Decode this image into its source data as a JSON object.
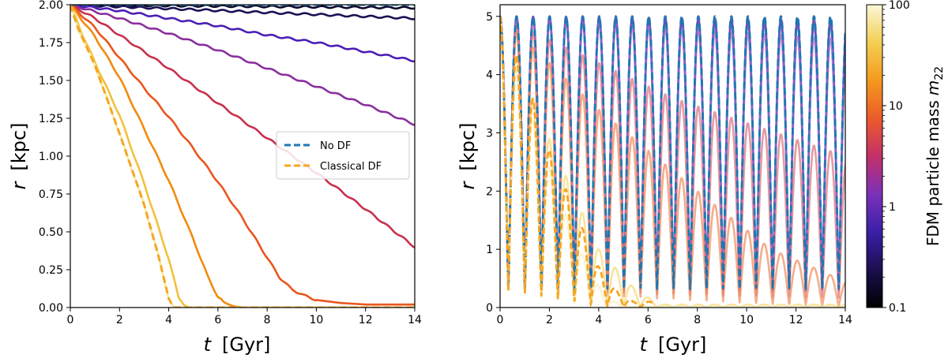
{
  "chart_data": [
    {
      "type": "line",
      "xlabel": "t",
      "xunit": "[Gyr]",
      "ylabel": "r",
      "yunit": "[kpc]",
      "xlim": [
        0,
        14
      ],
      "ylim": [
        0,
        2.0
      ],
      "xticks": [
        "0",
        "2",
        "4",
        "6",
        "8",
        "10",
        "12",
        "14"
      ],
      "yticks": [
        "0.00",
        "0.25",
        "0.50",
        "0.75",
        "1.00",
        "1.25",
        "1.50",
        "1.75",
        "2.00"
      ],
      "legend": {
        "position": "center-right",
        "entries": [
          {
            "label": "No DF",
            "color": "#1f77b4",
            "style": "dashed"
          },
          {
            "label": "Classical DF",
            "color": "#f5a623",
            "style": "dashed"
          }
        ]
      },
      "reference_series": [
        {
          "name": "No DF",
          "color": "#1f77b4",
          "x": [
            0,
            14
          ],
          "y": [
            2.0,
            2.0
          ]
        },
        {
          "name": "Classical DF",
          "color": "#f5a623",
          "x": [
            0,
            0.3,
            1,
            2,
            3,
            3.6,
            4.0,
            4.2,
            14
          ],
          "y": [
            2.0,
            1.85,
            1.6,
            1.15,
            0.68,
            0.33,
            0.06,
            0.0,
            0.0
          ]
        }
      ],
      "series": [
        {
          "m22": 0.1,
          "color": "#0d0829",
          "x": [
            0,
            14
          ],
          "y": [
            2.0,
            1.98
          ]
        },
        {
          "m22": 0.2,
          "color": "#1b1054",
          "x": [
            0,
            14
          ],
          "y": [
            2.0,
            1.91
          ]
        },
        {
          "m22": 0.5,
          "color": "#4a1fb5",
          "x": [
            0,
            2,
            4,
            6,
            8,
            10,
            12,
            14
          ],
          "y": [
            2.0,
            1.96,
            1.91,
            1.86,
            1.8,
            1.75,
            1.69,
            1.63
          ]
        },
        {
          "m22": 1,
          "color": "#8a2f9e",
          "x": [
            0,
            2,
            4,
            6,
            8,
            10,
            12,
            14
          ],
          "y": [
            2.0,
            1.91,
            1.81,
            1.7,
            1.58,
            1.46,
            1.34,
            1.21
          ]
        },
        {
          "m22": 2,
          "color": "#c9304d",
          "x": [
            0,
            1,
            2,
            4,
            6,
            8,
            10,
            12,
            14
          ],
          "y": [
            2.0,
            1.91,
            1.8,
            1.58,
            1.35,
            1.12,
            0.89,
            0.65,
            0.4
          ]
        },
        {
          "m22": 4,
          "color": "#e9561e",
          "x": [
            0,
            1,
            2,
            3,
            4,
            5,
            6,
            7,
            8,
            8.5,
            9,
            9.5,
            10,
            11,
            12,
            14
          ],
          "y": [
            2.0,
            1.85,
            1.65,
            1.45,
            1.26,
            1.05,
            0.83,
            0.59,
            0.33,
            0.2,
            0.12,
            0.08,
            0.05,
            0.03,
            0.02,
            0.02
          ]
        },
        {
          "m22": 7,
          "color": "#f28a0f",
          "x": [
            0,
            1,
            2,
            3,
            4,
            5,
            5.6,
            6.0,
            6.3,
            6.6,
            7,
            8,
            14
          ],
          "y": [
            2.0,
            1.79,
            1.52,
            1.18,
            0.84,
            0.45,
            0.2,
            0.07,
            0.03,
            0.01,
            0.0,
            0.0,
            0.0
          ]
        },
        {
          "m22": 15,
          "color": "#f1c13a",
          "x": [
            0,
            0.5,
            1,
            2,
            3,
            4,
            4.4,
            4.6,
            4.8,
            5.0,
            14
          ],
          "y": [
            2.0,
            1.8,
            1.62,
            1.27,
            0.82,
            0.32,
            0.07,
            0.02,
            0.0,
            0.0,
            0.0
          ]
        },
        {
          "m22": 40,
          "color": "#f6e9a0",
          "x": [
            0,
            0.3,
            1,
            2,
            3,
            3.6,
            4.0,
            4.2,
            14
          ],
          "y": [
            2.0,
            1.85,
            1.6,
            1.15,
            0.68,
            0.33,
            0.06,
            0.0,
            0.0
          ]
        }
      ]
    },
    {
      "type": "line",
      "xlabel": "t",
      "xunit": "[Gyr]",
      "ylabel": "r",
      "yunit": "[kpc]",
      "xlim": [
        0,
        14
      ],
      "ylim": [
        0,
        5.2
      ],
      "xticks": [
        "0",
        "2",
        "4",
        "6",
        "8",
        "10",
        "12",
        "14"
      ],
      "yticks": [
        "0",
        "1",
        "2",
        "3",
        "4",
        "5"
      ],
      "orbit_period_gyr": 0.67,
      "r_max": 5.0,
      "reference_series": [
        {
          "name": "No DF",
          "color": "#1f77b4",
          "r_peak": [
            5.0,
            5.0
          ],
          "r_min": 0.3,
          "t_end": 14
        },
        {
          "name": "Classical DF",
          "color": "#f5a623",
          "t": [
            0,
            0.7,
            1.4,
            2.0,
            2.7,
            3.4,
            4.0,
            4.7,
            5.4
          ],
          "r_peak": [
            5.0,
            4.3,
            3.5,
            2.7,
            2.0,
            1.3,
            0.7,
            0.3,
            0.1
          ]
        }
      ],
      "series": [
        {
          "m22": 0.2,
          "color": "#2a1a7a",
          "t": [
            0,
            14
          ],
          "r_peak": [
            5.0,
            4.95
          ]
        },
        {
          "m22": 0.5,
          "color": "#6a45c8",
          "t": [
            0,
            14
          ],
          "r_peak": [
            5.0,
            4.85
          ]
        },
        {
          "m22": 1,
          "color": "#a06ac8",
          "t": [
            0,
            14
          ],
          "r_peak": [
            5.0,
            4.6
          ]
        },
        {
          "m22": 2,
          "color": "#d8707a",
          "t": [
            0,
            7,
            14
          ],
          "r_peak": [
            5.0,
            3.6,
            2.6
          ]
        },
        {
          "m22": 4,
          "color": "#f08a5a",
          "t": [
            0,
            4,
            8,
            11,
            14
          ],
          "r_peak": [
            5.0,
            3.4,
            2.0,
            1.0,
            0.45
          ]
        },
        {
          "m22": 15,
          "color": "#f5d872",
          "t": [
            0,
            2,
            4,
            5.5,
            6.5
          ],
          "r_peak": [
            5.0,
            2.9,
            1.0,
            0.3,
            0.05
          ]
        },
        {
          "m22": 40,
          "color": "#f8f0c0",
          "t": [
            0,
            1.5,
            3,
            4.2,
            5
          ],
          "r_peak": [
            5.0,
            3.0,
            1.2,
            0.2,
            0.02
          ]
        }
      ],
      "colorbar": {
        "label": "FDM particle mass",
        "label_symbol": "m",
        "label_sub": "22",
        "scale": "log",
        "range": [
          0.1,
          100
        ],
        "ticks": [
          "0.1",
          "1",
          "10",
          "100"
        ],
        "colormap": "CMRmap-like",
        "stops": [
          "#000000",
          "#1b0f4f",
          "#3b1fa8",
          "#7b31b8",
          "#c3306a",
          "#ec5b2a",
          "#f39a1d",
          "#f4cf52",
          "#fbf7d8"
        ]
      }
    }
  ]
}
